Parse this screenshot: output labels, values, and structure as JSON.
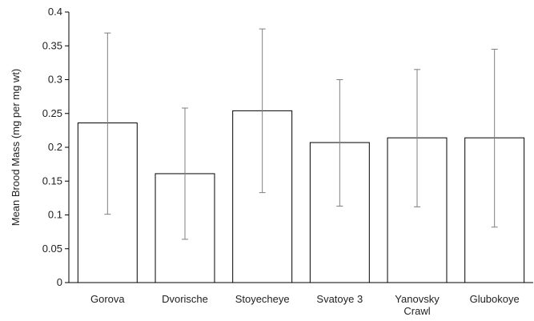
{
  "chart_data": {
    "type": "bar",
    "title": "",
    "xlabel": "",
    "ylabel": "Mean Brood Mass (mg per mg wt)",
    "ylim": [
      0,
      0.4
    ],
    "yticks": [
      "0",
      "0.05",
      "0.1",
      "0.15",
      "0.2",
      "0.25",
      "0.3",
      "0.35",
      "0.4"
    ],
    "categories": [
      "Gorova",
      "Dvorische",
      "Stoyecheye",
      "Svatoye 3",
      "Yanovsky Crawl",
      "Glubokoye"
    ],
    "values": [
      0.236,
      0.161,
      0.254,
      0.207,
      0.214,
      0.214
    ],
    "error_low": [
      0.101,
      0.064,
      0.133,
      0.113,
      0.112,
      0.082
    ],
    "error_high": [
      0.369,
      0.258,
      0.375,
      0.3,
      0.315,
      0.345
    ],
    "grid": false,
    "legend": "none",
    "colors": {
      "bar_fill": "#ffffff",
      "bar_stroke": "#000000",
      "error_bar": "#7f7f7f",
      "axis": "#000000"
    }
  }
}
